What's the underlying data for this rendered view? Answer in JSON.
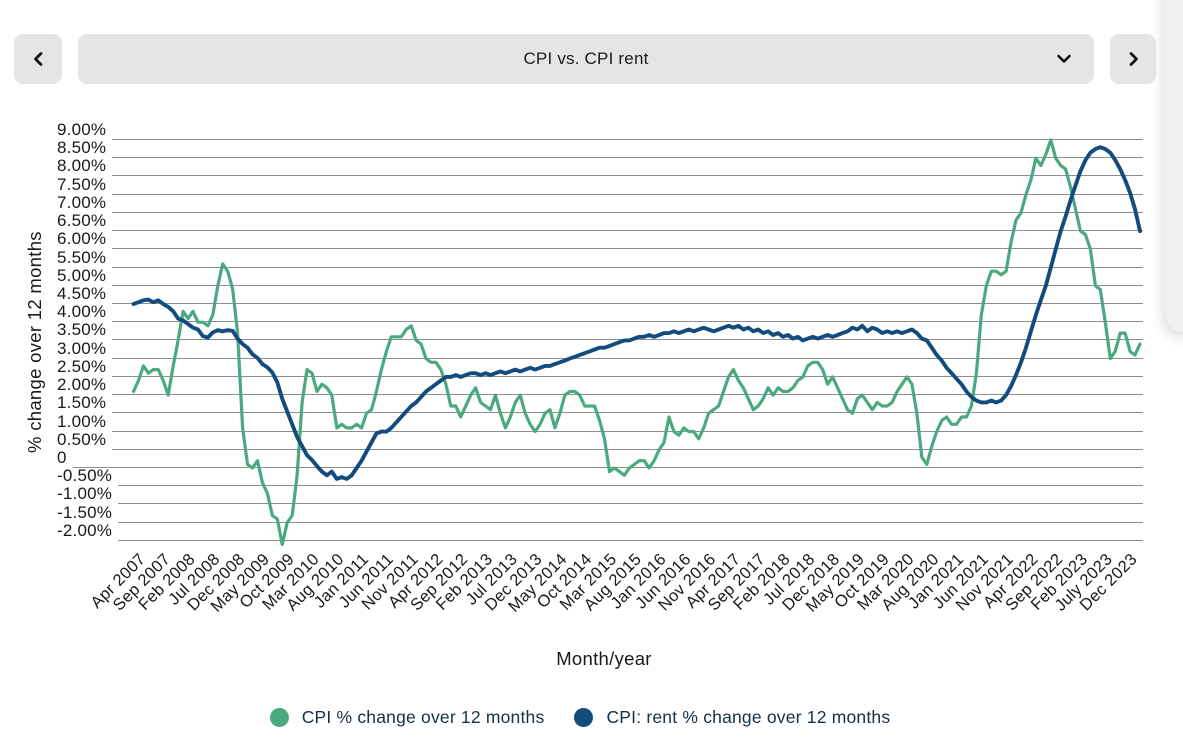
{
  "header": {
    "dropdown": {
      "selected": "CPI vs. CPI rent",
      "icon": "chevron-down"
    },
    "prev_button": {
      "icon": "chevron-left"
    },
    "next_button": {
      "icon": "chevron-right"
    }
  },
  "colors": {
    "cpi_green": "#4BA97F",
    "rent_navy": "#134B7E",
    "gridline": "#8D8D8D",
    "control_bg": "#E6E5E3",
    "text": "#191919",
    "legend_text": "#16304A"
  },
  "chart_data": {
    "type": "line",
    "title": "CPI vs. CPI rent",
    "xlabel": "Month/year",
    "ylabel": "% change over 12 months",
    "ylim": [
      -2.2,
      9.2
    ],
    "grid": true,
    "legend_position": "bottom",
    "months_per_tick": 5,
    "first_tick_point_index": 3,
    "x_tick_labels": [
      "Apr 2007",
      "Sep 2007",
      "Feb 2008",
      "Jul 2008",
      "Dec 2008",
      "May 2009",
      "Oct 2009",
      "Mar 2010",
      "Aug 2010",
      "Jan 2011",
      "Jun 2011",
      "Nov 2011",
      "Apr 2012",
      "Sep 2012",
      "Feb 2013",
      "Jul 2013",
      "Dec 2013",
      "May 2014",
      "Oct 2014",
      "Mar 2015",
      "Aug 2015",
      "Jan 2016",
      "Jun 2016",
      "Nov 2016",
      "Apr 2017",
      "Sep 2017",
      "Feb 2018",
      "Jul 2018",
      "Dec 2018",
      "May 2019",
      "Oct 2019",
      "Mar 2020",
      "Aug 2020",
      "Jan 2021",
      "Jun 2021",
      "Nov 2021",
      "Apr 2022",
      "Sep 2022",
      "Feb 2023",
      "July 2023",
      "Dec 2023"
    ],
    "yticks": [
      {
        "label": "9.00%",
        "value": 9
      },
      {
        "label": "8.50%",
        "value": 8.5
      },
      {
        "label": "8.00%",
        "value": 8
      },
      {
        "label": "7.50%",
        "value": 7.5
      },
      {
        "label": "7.00%",
        "value": 7
      },
      {
        "label": "6.50%",
        "value": 6.5
      },
      {
        "label": "6.00%",
        "value": 6
      },
      {
        "label": "5.50%",
        "value": 5.5
      },
      {
        "label": "5.00%",
        "value": 5
      },
      {
        "label": "4.50%",
        "value": 4.5
      },
      {
        "label": "4.00%",
        "value": 4
      },
      {
        "label": "3.50%",
        "value": 3.5
      },
      {
        "label": "3.00%",
        "value": 3
      },
      {
        "label": "2.50%",
        "value": 2.5
      },
      {
        "label": "2.00%",
        "value": 2
      },
      {
        "label": "1.50%",
        "value": 1.5
      },
      {
        "label": "1.00%",
        "value": 1
      },
      {
        "label": "0.50%",
        "value": 0.5
      },
      {
        "label": "0",
        "value": 0
      },
      {
        "label": "-0.50%",
        "value": -0.5
      },
      {
        "label": "-1.00%",
        "value": -1
      },
      {
        "label": "-1.50%",
        "value": -1.5
      },
      {
        "label": "-2.00%",
        "value": -2
      }
    ],
    "series": [
      {
        "name": "CPI % change over 12 months",
        "color": "#4BA97F",
        "values": [
          2.1,
          2.4,
          2.8,
          2.6,
          2.7,
          2.7,
          2.4,
          2.0,
          2.8,
          3.5,
          4.3,
          4.1,
          4.3,
          4.0,
          4.0,
          3.9,
          4.2,
          5.0,
          5.6,
          5.4,
          4.9,
          3.7,
          1.1,
          0.1,
          0.0,
          0.2,
          -0.4,
          -0.7,
          -1.3,
          -1.4,
          -2.1,
          -1.5,
          -1.3,
          -0.2,
          1.8,
          2.7,
          2.6,
          2.1,
          2.3,
          2.2,
          2.0,
          1.1,
          1.2,
          1.1,
          1.1,
          1.2,
          1.1,
          1.5,
          1.6,
          2.1,
          2.7,
          3.2,
          3.6,
          3.6,
          3.6,
          3.8,
          3.9,
          3.5,
          3.4,
          3.0,
          2.9,
          2.9,
          2.7,
          2.3,
          1.7,
          1.7,
          1.4,
          1.7,
          2.0,
          2.2,
          1.8,
          1.7,
          1.6,
          2.0,
          1.5,
          1.1,
          1.4,
          1.8,
          2.0,
          1.5,
          1.2,
          1.0,
          1.2,
          1.5,
          1.6,
          1.1,
          1.5,
          2.0,
          2.1,
          2.1,
          2.0,
          1.7,
          1.7,
          1.7,
          1.3,
          0.8,
          -0.1,
          0.0,
          -0.1,
          -0.2,
          0.0,
          0.1,
          0.2,
          0.2,
          0.0,
          0.2,
          0.5,
          0.7,
          1.4,
          1.0,
          0.9,
          1.1,
          1.0,
          1.0,
          0.8,
          1.1,
          1.5,
          1.6,
          1.7,
          2.1,
          2.5,
          2.7,
          2.4,
          2.2,
          1.9,
          1.6,
          1.7,
          1.9,
          2.2,
          2.0,
          2.2,
          2.1,
          2.1,
          2.2,
          2.4,
          2.5,
          2.8,
          2.9,
          2.9,
          2.7,
          2.3,
          2.5,
          2.2,
          1.9,
          1.6,
          1.5,
          1.9,
          2.0,
          1.8,
          1.6,
          1.8,
          1.7,
          1.7,
          1.8,
          2.1,
          2.3,
          2.5,
          2.3,
          1.5,
          0.3,
          0.1,
          0.6,
          1.0,
          1.3,
          1.4,
          1.2,
          1.2,
          1.4,
          1.4,
          1.7,
          2.6,
          4.2,
          5.0,
          5.4,
          5.4,
          5.3,
          5.4,
          6.2,
          6.8,
          7.0,
          7.5,
          7.9,
          8.5,
          8.3,
          8.6,
          9.0,
          8.5,
          8.3,
          8.2,
          7.7,
          7.1,
          6.5,
          6.4,
          6.0,
          5.0,
          4.9,
          4.0,
          3.0,
          3.2,
          3.7,
          3.7,
          3.2,
          3.1,
          3.4
        ]
      },
      {
        "name": "CPI: rent % change over 12 months",
        "color": "#134B7E",
        "values": [
          4.5,
          4.55,
          4.6,
          4.62,
          4.55,
          4.6,
          4.5,
          4.42,
          4.3,
          4.1,
          4.05,
          3.95,
          3.85,
          3.8,
          3.62,
          3.58,
          3.72,
          3.78,
          3.75,
          3.78,
          3.76,
          3.55,
          3.4,
          3.3,
          3.12,
          3.02,
          2.85,
          2.76,
          2.62,
          2.35,
          1.9,
          1.55,
          1.2,
          0.85,
          0.6,
          0.35,
          0.22,
          0.05,
          -0.1,
          -0.2,
          -0.1,
          -0.3,
          -0.25,
          -0.3,
          -0.2,
          0.0,
          0.2,
          0.45,
          0.7,
          0.95,
          1.0,
          1.0,
          1.1,
          1.25,
          1.4,
          1.55,
          1.7,
          1.8,
          1.95,
          2.1,
          2.2,
          2.3,
          2.4,
          2.5,
          2.5,
          2.55,
          2.5,
          2.55,
          2.6,
          2.6,
          2.55,
          2.6,
          2.55,
          2.6,
          2.65,
          2.6,
          2.65,
          2.7,
          2.65,
          2.7,
          2.75,
          2.7,
          2.75,
          2.8,
          2.8,
          2.85,
          2.9,
          2.95,
          3.0,
          3.05,
          3.1,
          3.15,
          3.2,
          3.25,
          3.3,
          3.3,
          3.35,
          3.4,
          3.45,
          3.5,
          3.5,
          3.55,
          3.6,
          3.6,
          3.65,
          3.6,
          3.65,
          3.7,
          3.7,
          3.75,
          3.7,
          3.75,
          3.8,
          3.75,
          3.8,
          3.85,
          3.8,
          3.75,
          3.8,
          3.85,
          3.9,
          3.85,
          3.9,
          3.8,
          3.85,
          3.75,
          3.8,
          3.7,
          3.75,
          3.65,
          3.7,
          3.6,
          3.65,
          3.55,
          3.6,
          3.5,
          3.55,
          3.6,
          3.55,
          3.6,
          3.65,
          3.6,
          3.65,
          3.7,
          3.75,
          3.85,
          3.8,
          3.9,
          3.75,
          3.85,
          3.8,
          3.7,
          3.75,
          3.7,
          3.75,
          3.7,
          3.75,
          3.8,
          3.7,
          3.55,
          3.5,
          3.3,
          3.1,
          2.95,
          2.75,
          2.6,
          2.45,
          2.3,
          2.1,
          1.95,
          1.85,
          1.8,
          1.8,
          1.85,
          1.8,
          1.85,
          2.0,
          2.25,
          2.55,
          2.9,
          3.3,
          3.75,
          4.2,
          4.6,
          5.0,
          5.5,
          6.0,
          6.5,
          6.9,
          7.35,
          7.75,
          8.15,
          8.45,
          8.65,
          8.75,
          8.8,
          8.75,
          8.65,
          8.45,
          8.2,
          7.9,
          7.55,
          7.1,
          6.5
        ]
      }
    ]
  }
}
